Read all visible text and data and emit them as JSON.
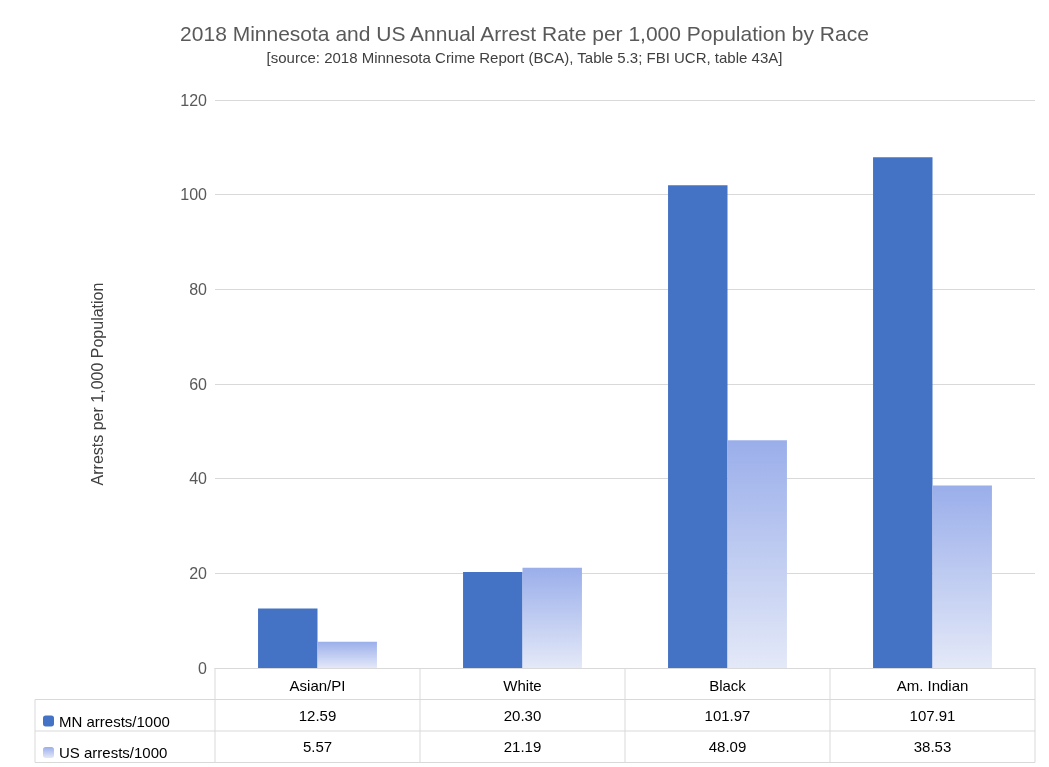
{
  "chart_data": {
    "type": "bar",
    "title": "2018 Minnesota and US Annual Arrest Rate per 1,000 Population by Race",
    "subtitle": "[source: 2018 Minnesota Crime Report (BCA), Table 5.3; FBI UCR, table 43A]",
    "ylabel": "Arrests per 1,000 Population",
    "categories": [
      "Asian/PI",
      "White",
      "Black",
      "Am. Indian"
    ],
    "series": [
      {
        "name": "MN arrests/1000",
        "color": "#4472c4",
        "values": [
          12.59,
          20.3,
          101.97,
          107.91
        ],
        "value_labels": [
          "12.59",
          "20.30",
          "101.97",
          "107.91"
        ]
      },
      {
        "name": "US arrests/1000",
        "color": "#9aaeea",
        "values": [
          5.57,
          21.19,
          48.09,
          38.53
        ],
        "value_labels": [
          "5.57",
          "21.19",
          "48.09",
          "38.53"
        ]
      }
    ],
    "ylim": [
      0,
      120
    ],
    "yticks": [
      0,
      20,
      40,
      60,
      80,
      100,
      120
    ],
    "grid": "y",
    "legend": "bottom left"
  }
}
